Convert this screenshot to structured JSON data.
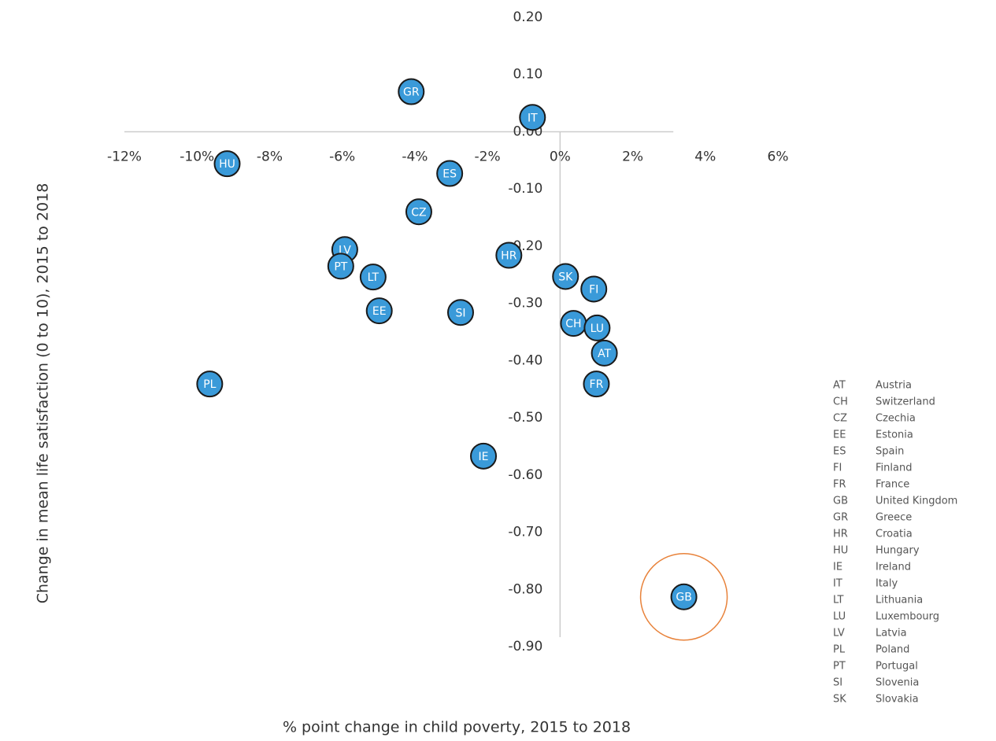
{
  "chart_data": {
    "type": "scatter",
    "x_label": "% point change in child poverty, 2015 to 2018",
    "y_label": "Change in mean life satisfaction (0 to 10), 2015 to 2018",
    "xlim": [
      -12,
      6
    ],
    "ylim": [
      -0.9,
      0.2
    ],
    "xticks": [
      {
        "value": -12,
        "label": "-12%"
      },
      {
        "value": -10,
        "label": "-10%"
      },
      {
        "value": -8,
        "label": "-8%"
      },
      {
        "value": -6,
        "label": "-6%"
      },
      {
        "value": -4,
        "label": "-4%"
      },
      {
        "value": -2,
        "label": "-2%"
      },
      {
        "value": 0,
        "label": "0%"
      },
      {
        "value": 2,
        "label": "2%"
      },
      {
        "value": 4,
        "label": "4%"
      },
      {
        "value": 6,
        "label": "6%"
      }
    ],
    "yticks": [
      {
        "value": 0.2,
        "label": "0.20"
      },
      {
        "value": 0.1,
        "label": "0.10"
      },
      {
        "value": 0,
        "label": "0.00"
      },
      {
        "value": -0.1,
        "label": "-0.10"
      },
      {
        "value": -0.2,
        "label": "-0.20"
      },
      {
        "value": -0.3,
        "label": "-0.30"
      },
      {
        "value": -0.4,
        "label": "-0.40"
      },
      {
        "value": -0.5,
        "label": "-0.50"
      },
      {
        "value": -0.6,
        "label": "-0.60"
      },
      {
        "value": -0.7,
        "label": "-0.70"
      },
      {
        "value": -0.8,
        "label": "-0.80"
      },
      {
        "value": -0.9,
        "label": "-0.90"
      }
    ],
    "color": "#3a9ad9",
    "highlight": "GB",
    "highlight_color": "#e8823a",
    "points": [
      {
        "label": "GR",
        "x": -4.1,
        "y": 0.07
      },
      {
        "label": "IT",
        "x": -0.76,
        "y": 0.025
      },
      {
        "label": "HU",
        "x": -9.17,
        "y": -0.056
      },
      {
        "label": "ES",
        "x": -3.04,
        "y": -0.073
      },
      {
        "label": "CZ",
        "x": -3.89,
        "y": -0.14
      },
      {
        "label": "LV",
        "x": -5.93,
        "y": -0.206
      },
      {
        "label": "PT",
        "x": -6.04,
        "y": -0.235
      },
      {
        "label": "LT",
        "x": -5.15,
        "y": -0.254
      },
      {
        "label": "HR",
        "x": -1.41,
        "y": -0.216
      },
      {
        "label": "SK",
        "x": 0.15,
        "y": -0.253
      },
      {
        "label": "FI",
        "x": 0.93,
        "y": -0.275
      },
      {
        "label": "EE",
        "x": -4.98,
        "y": -0.313
      },
      {
        "label": "SI",
        "x": -2.74,
        "y": -0.316
      },
      {
        "label": "CH",
        "x": 0.37,
        "y": -0.335
      },
      {
        "label": "LU",
        "x": 1.02,
        "y": -0.343
      },
      {
        "label": "AT",
        "x": 1.22,
        "y": -0.387
      },
      {
        "label": "FR",
        "x": 1.0,
        "y": -0.441
      },
      {
        "label": "PL",
        "x": -9.65,
        "y": -0.441
      },
      {
        "label": "IE",
        "x": -2.11,
        "y": -0.567
      },
      {
        "label": "GB",
        "x": 3.41,
        "y": -0.813
      }
    ],
    "legend": [
      {
        "code": "AT",
        "name": "Austria"
      },
      {
        "code": "CH",
        "name": "Switzerland"
      },
      {
        "code": "CZ",
        "name": "Czechia"
      },
      {
        "code": "EE",
        "name": "Estonia"
      },
      {
        "code": "ES",
        "name": "Spain"
      },
      {
        "code": "FI",
        "name": "Finland"
      },
      {
        "code": "FR",
        "name": "France"
      },
      {
        "code": "GB",
        "name": "United Kingdom"
      },
      {
        "code": "GR",
        "name": "Greece"
      },
      {
        "code": "HR",
        "name": "Croatia"
      },
      {
        "code": "HU",
        "name": "Hungary"
      },
      {
        "code": "IE",
        "name": "Ireland"
      },
      {
        "code": "IT",
        "name": "Italy"
      },
      {
        "code": "LT",
        "name": "Lithuania"
      },
      {
        "code": "LU",
        "name": "Luxembourg"
      },
      {
        "code": "LV",
        "name": "Latvia"
      },
      {
        "code": "PL",
        "name": "Poland"
      },
      {
        "code": "PT",
        "name": "Portugal"
      },
      {
        "code": "SI",
        "name": "Slovenia"
      },
      {
        "code": "SK",
        "name": "Slovakia"
      }
    ]
  }
}
